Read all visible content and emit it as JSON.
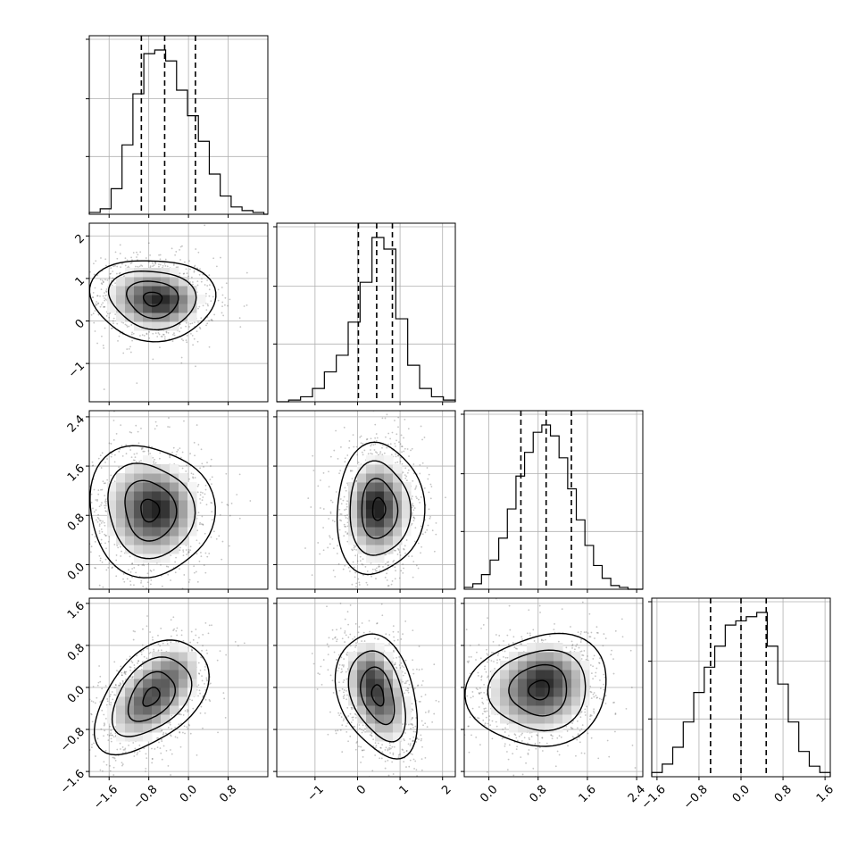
{
  "chart_data": {
    "type": "corner",
    "grid": true,
    "parameters": [
      {
        "index": 0,
        "range": [
          -2.0,
          1.6
        ],
        "ticks": [
          -1.6,
          -0.8,
          0.0,
          0.8
        ],
        "tick_labels": [
          "−1.6",
          "−0.8",
          "0.0",
          "0.8"
        ],
        "quantiles": [
          -0.95,
          -0.48,
          0.14
        ],
        "hist_bins": [
          -2.0,
          -1.78,
          -1.56,
          -1.34,
          -1.12,
          -0.9,
          -0.68,
          -0.46,
          -0.24,
          -0.02,
          0.2,
          0.42,
          0.64,
          0.86,
          1.08,
          1.3,
          1.52,
          1.6
        ],
        "hist_counts": [
          1,
          3,
          14,
          38,
          66,
          88,
          90,
          84,
          68,
          54,
          40,
          22,
          10,
          4,
          2,
          1,
          0
        ]
      },
      {
        "index": 1,
        "range": [
          -1.9,
          2.3
        ],
        "ticks": [
          -1,
          0,
          1,
          2
        ],
        "tick_labels": [
          "−1",
          "0",
          "1",
          "2"
        ],
        "quantiles": [
          0.02,
          0.45,
          0.82
        ],
        "hist_bins": [
          -1.9,
          -1.62,
          -1.34,
          -1.06,
          -0.78,
          -0.5,
          -0.22,
          0.06,
          0.34,
          0.62,
          0.9,
          1.18,
          1.46,
          1.74,
          2.02,
          2.3
        ],
        "hist_counts": [
          0,
          1,
          3,
          8,
          18,
          28,
          48,
          72,
          99,
          92,
          50,
          22,
          8,
          3,
          1
        ]
      },
      {
        "index": 2,
        "range": [
          -0.4,
          2.5
        ],
        "ticks": [
          0.0,
          0.8,
          1.6,
          2.4
        ],
        "tick_labels": [
          "0.0",
          "0.8",
          "1.6",
          "2.4"
        ],
        "quantiles": [
          0.52,
          0.93,
          1.34
        ],
        "hist_bins": [
          -0.4,
          -0.26,
          -0.12,
          0.02,
          0.16,
          0.3,
          0.44,
          0.58,
          0.72,
          0.86,
          1.0,
          1.14,
          1.28,
          1.42,
          1.56,
          1.7,
          1.84,
          1.98,
          2.12,
          2.26,
          2.5
        ],
        "hist_counts": [
          1,
          3,
          8,
          16,
          28,
          44,
          62,
          75,
          86,
          90,
          84,
          72,
          55,
          38,
          24,
          13,
          6,
          2,
          1,
          0
        ]
      },
      {
        "index": 3,
        "range": [
          -1.7,
          1.7
        ],
        "ticks": [
          -1.6,
          -0.8,
          0.0,
          0.8,
          1.6
        ],
        "tick_labels": [
          "−1.6",
          "−0.8",
          "0.0",
          "0.8",
          "1.6"
        ],
        "quantiles": [
          -0.58,
          0.0,
          0.48
        ],
        "hist_bins": [
          -1.7,
          -1.5,
          -1.3,
          -1.1,
          -0.9,
          -0.7,
          -0.5,
          -0.3,
          -0.1,
          0.1,
          0.3,
          0.5,
          0.7,
          0.9,
          1.1,
          1.3,
          1.5,
          1.7
        ],
        "hist_counts": [
          2,
          6,
          14,
          26,
          40,
          52,
          62,
          72,
          74,
          76,
          78,
          62,
          44,
          26,
          12,
          5,
          2
        ]
      }
    ],
    "pairs": [
      {
        "x": 0,
        "y": 1,
        "center": [
          -0.72,
          0.52
        ],
        "sd": [
          0.55,
          0.45
        ],
        "rho": -0.05,
        "secondary_mode": [
          -0.35,
          0.45
        ]
      },
      {
        "x": 0,
        "y": 2,
        "center": [
          -0.78,
          0.88
        ],
        "sd": [
          0.55,
          0.5
        ],
        "rho": -0.05,
        "secondary_mode": [
          -0.45,
          0.95
        ]
      },
      {
        "x": 1,
        "y": 2,
        "center": [
          0.5,
          0.9
        ],
        "sd": [
          0.45,
          0.5
        ],
        "rho": 0.05,
        "secondary_mode": [
          0.35,
          1.0
        ]
      },
      {
        "x": 0,
        "y": 3,
        "center": [
          -0.75,
          -0.18
        ],
        "sd": [
          0.5,
          0.5
        ],
        "rho": 0.45,
        "secondary_mode": [
          -0.22,
          0.38
        ]
      },
      {
        "x": 1,
        "y": 3,
        "center": [
          0.48,
          -0.15
        ],
        "sd": [
          0.42,
          0.55
        ],
        "rho": -0.3,
        "secondary_mode": [
          0.25,
          0.3
        ]
      },
      {
        "x": 2,
        "y": 3,
        "center": [
          0.82,
          -0.05
        ],
        "sd": [
          0.5,
          0.5
        ],
        "rho": 0.1,
        "secondary_mode": [
          0.95,
          0.3
        ]
      }
    ],
    "colors": {
      "frame": "#000000",
      "grid": "#b0b0b0",
      "points": "#555555",
      "contour": "#000000",
      "density_max": "#000000"
    }
  }
}
